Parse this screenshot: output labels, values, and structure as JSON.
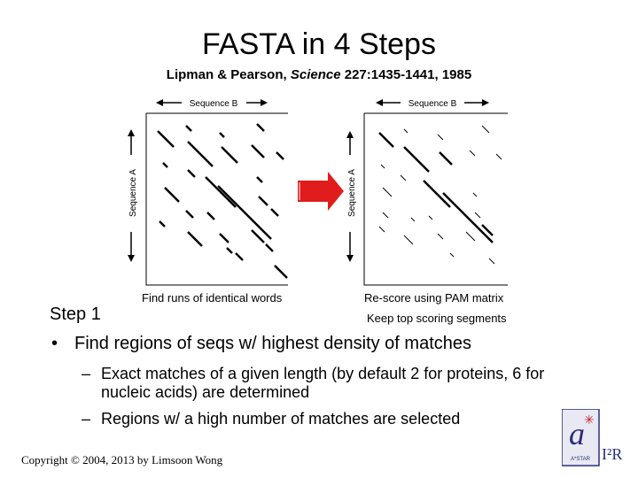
{
  "slide": {
    "title": "FASTA in 4 Steps",
    "citation_prefix": "Lipman & Pearson, ",
    "citation_journal": "Science",
    "citation_rest": " 227:1435-1441, 1985"
  },
  "figure": {
    "left_panel": {
      "top_label": "Sequence B",
      "side_label": "Sequence A",
      "caption": "Find runs of identical words"
    },
    "right_panel": {
      "top_label": "Sequence B",
      "side_label": "Sequence A",
      "caption_line1": "Re-score using PAM matrix",
      "caption_line2": "Keep top scoring segments"
    },
    "arrow_color": "#e11c1c"
  },
  "body": {
    "step_heading": "Step 1",
    "bullet": "Find regions of seqs w/ highest density of matches",
    "subpoints": [
      "Exact matches of a given length  (by default 2 for proteins, 6 for nucleic acids) are  determined",
      "Regions w/ a high number of matches are selected"
    ]
  },
  "footer": {
    "copyright": "Copyright © 2004, 2013 by Limsoon Wong",
    "logo_text": "I²R",
    "logo_subtext": "A*STAR",
    "logo_color": "#2b2f7c",
    "logo_accent": "#c0202a"
  }
}
